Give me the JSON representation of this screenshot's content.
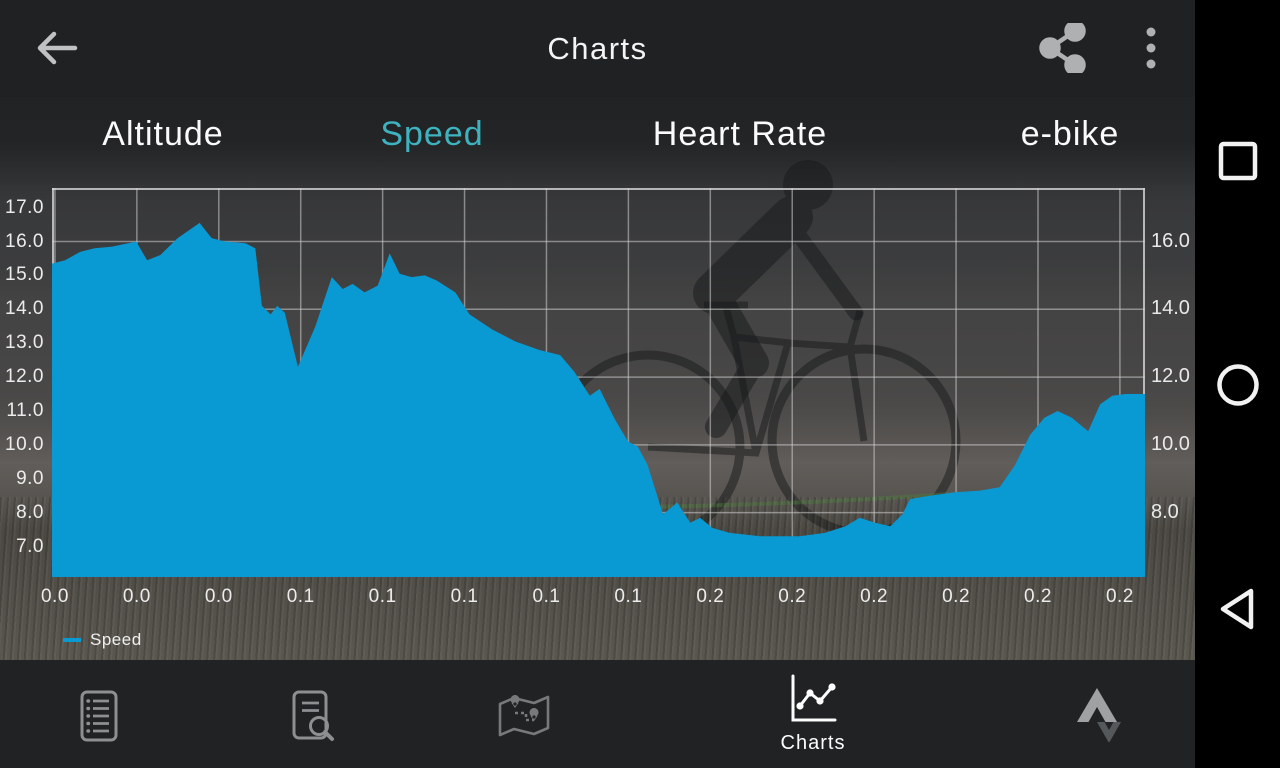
{
  "app_bar": {
    "title": "Charts"
  },
  "tabs": [
    {
      "label": "Altitude",
      "active": false
    },
    {
      "label": "Speed",
      "active": true
    },
    {
      "label": "Heart Rate",
      "active": false
    },
    {
      "label": "e-bike",
      "active": false
    }
  ],
  "colors": {
    "chart_blue": "#0999d3",
    "accent_teal": "#3eb3bf",
    "bar_dark": "#202224",
    "inactive_icon_gray": "#8d8f91",
    "grid_gray": "rgba(205,205,205,0.55)"
  },
  "chart_data": {
    "type": "area",
    "title": "",
    "xlabel": "",
    "ylabel": "",
    "legend_position": "bottom-left",
    "grid": true,
    "ylim": [
      6.1,
      17.58
    ],
    "y_ticks_left": [
      {
        "value": 17,
        "label": "17.0"
      },
      {
        "value": 16,
        "label": "16.0"
      },
      {
        "value": 15,
        "label": "15.0"
      },
      {
        "value": 14,
        "label": "14.0"
      },
      {
        "value": 13,
        "label": "13.0"
      },
      {
        "value": 12,
        "label": "12.0"
      },
      {
        "value": 11,
        "label": "11.0"
      },
      {
        "value": 10,
        "label": "10.0"
      },
      {
        "value": 9,
        "label": "9.0"
      },
      {
        "value": 8,
        "label": "8.0"
      },
      {
        "value": 7,
        "label": "7.0"
      }
    ],
    "y_ticks_right": [
      {
        "value": 16,
        "label": "16.0"
      },
      {
        "value": 14,
        "label": "14.0"
      },
      {
        "value": 12,
        "label": "12.0"
      },
      {
        "value": 10,
        "label": "10.0"
      },
      {
        "value": 8,
        "label": "8.0"
      }
    ],
    "grid_y_values": [
      16,
      14,
      12,
      10,
      8
    ],
    "x_tick_labels": [
      "0.0",
      "0.0",
      "0.0",
      "0.1",
      "0.1",
      "0.1",
      "0.1",
      "0.1",
      "0.2",
      "0.2",
      "0.2",
      "0.2",
      "0.2",
      "0.2"
    ],
    "series": [
      {
        "name": "Speed",
        "color": "#0999d3",
        "points": [
          [
            0.0,
            15.35
          ],
          [
            0.012,
            15.45
          ],
          [
            0.026,
            15.7
          ],
          [
            0.039,
            15.8
          ],
          [
            0.055,
            15.85
          ],
          [
            0.07,
            15.95
          ],
          [
            0.077,
            16.0
          ],
          [
            0.087,
            15.45
          ],
          [
            0.099,
            15.6
          ],
          [
            0.115,
            16.1
          ],
          [
            0.135,
            16.55
          ],
          [
            0.146,
            16.1
          ],
          [
            0.158,
            16.0
          ],
          [
            0.177,
            15.95
          ],
          [
            0.186,
            15.8
          ],
          [
            0.192,
            14.1
          ],
          [
            0.2,
            13.85
          ],
          [
            0.206,
            14.1
          ],
          [
            0.213,
            13.9
          ],
          [
            0.225,
            12.3
          ],
          [
            0.241,
            13.5
          ],
          [
            0.256,
            14.95
          ],
          [
            0.266,
            14.6
          ],
          [
            0.275,
            14.75
          ],
          [
            0.286,
            14.5
          ],
          [
            0.298,
            14.7
          ],
          [
            0.309,
            15.65
          ],
          [
            0.318,
            15.05
          ],
          [
            0.329,
            14.95
          ],
          [
            0.341,
            15.0
          ],
          [
            0.352,
            14.85
          ],
          [
            0.369,
            14.5
          ],
          [
            0.382,
            13.85
          ],
          [
            0.403,
            13.4
          ],
          [
            0.424,
            13.05
          ],
          [
            0.446,
            12.8
          ],
          [
            0.465,
            12.65
          ],
          [
            0.478,
            12.15
          ],
          [
            0.492,
            11.45
          ],
          [
            0.501,
            11.65
          ],
          [
            0.515,
            10.75
          ],
          [
            0.527,
            10.1
          ],
          [
            0.536,
            9.95
          ],
          [
            0.545,
            9.4
          ],
          [
            0.559,
            7.95
          ],
          [
            0.572,
            8.3
          ],
          [
            0.584,
            7.7
          ],
          [
            0.593,
            7.85
          ],
          [
            0.604,
            7.55
          ],
          [
            0.62,
            7.4
          ],
          [
            0.648,
            7.3
          ],
          [
            0.684,
            7.3
          ],
          [
            0.707,
            7.4
          ],
          [
            0.726,
            7.6
          ],
          [
            0.739,
            7.85
          ],
          [
            0.753,
            7.7
          ],
          [
            0.767,
            7.6
          ],
          [
            0.778,
            7.95
          ],
          [
            0.785,
            8.4
          ],
          [
            0.803,
            8.5
          ],
          [
            0.826,
            8.6
          ],
          [
            0.849,
            8.65
          ],
          [
            0.867,
            8.75
          ],
          [
            0.881,
            9.4
          ],
          [
            0.895,
            10.3
          ],
          [
            0.908,
            10.8
          ],
          [
            0.92,
            11.0
          ],
          [
            0.933,
            10.8
          ],
          [
            0.948,
            10.4
          ],
          [
            0.959,
            11.2
          ],
          [
            0.97,
            11.45
          ],
          [
            0.982,
            11.5
          ],
          [
            1.0,
            11.5
          ]
        ]
      }
    ]
  },
  "legend": {
    "label": "Speed"
  },
  "bottom_nav": {
    "items": [
      {
        "name": "records-list",
        "label": "",
        "active": false
      },
      {
        "name": "search-activity",
        "label": "",
        "active": false
      },
      {
        "name": "map-route",
        "label": "",
        "active": false
      },
      {
        "name": "charts",
        "label": "Charts",
        "active": true
      },
      {
        "name": "strava-upload",
        "label": "",
        "active": false
      }
    ]
  },
  "android_nav": {
    "buttons": [
      "recents",
      "home",
      "back"
    ]
  }
}
